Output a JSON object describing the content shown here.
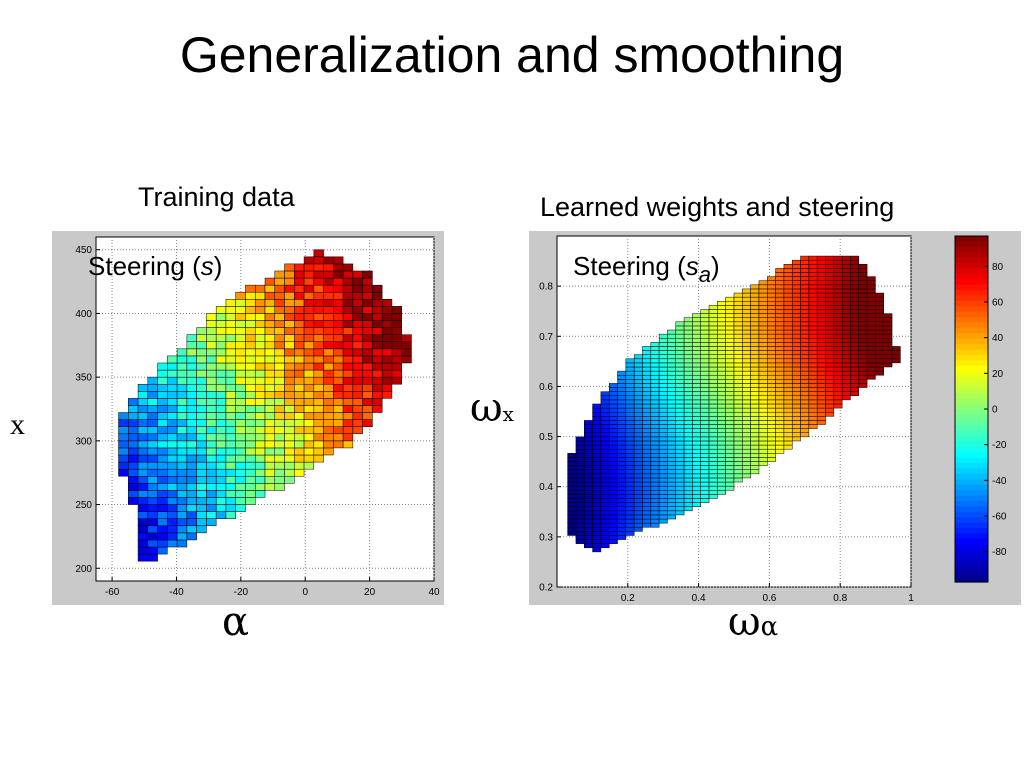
{
  "slide": {
    "title": "Generalization and smoothing"
  },
  "left_panel": {
    "title": "Training data",
    "inner_label": {
      "text": "Steering (",
      "symbol": "s",
      "close": ")"
    },
    "xlabel": "α",
    "ylabel": "x"
  },
  "right_panel": {
    "title": "Learned weights and steering",
    "inner_label": {
      "text": "Steering (",
      "symbol": "s",
      "subscript": "a",
      "close": ")"
    },
    "xlabel": {
      "main": "ω",
      "sub": "α"
    },
    "ylabel": {
      "main": "ω",
      "sub": "x"
    }
  },
  "chart_data": [
    {
      "type": "heatmap",
      "title": "Training data",
      "xlabel": "α",
      "ylabel": "x",
      "xlim": [
        -65,
        40
      ],
      "ylim": [
        190,
        460
      ],
      "xticks": [
        -60,
        -40,
        -20,
        0,
        20,
        40
      ],
      "yticks": [
        200,
        250,
        300,
        350,
        400,
        450
      ],
      "grid": true,
      "series_label": "Steering (s)",
      "region_boundary": [
        [
          -50,
          200
        ],
        [
          -45,
          210
        ],
        [
          -20,
          245
        ],
        [
          0,
          275
        ],
        [
          15,
          300
        ],
        [
          28,
          340
        ],
        [
          33,
          370
        ],
        [
          30,
          400
        ],
        [
          20,
          430
        ],
        [
          5,
          450
        ],
        [
          -25,
          410
        ],
        [
          -40,
          370
        ],
        [
          -50,
          345
        ],
        [
          -58,
          320
        ],
        [
          -58,
          280
        ],
        [
          -52,
          240
        ],
        [
          -50,
          200
        ]
      ],
      "color_trend": "low (blue) at negative α, high (red) at large α and x",
      "value_range": [
        -90,
        90
      ]
    },
    {
      "type": "heatmap",
      "title": "Learned weights and steering",
      "xlabel": "ωα",
      "ylabel": "ωx",
      "xlim": [
        0,
        1
      ],
      "ylim": [
        0.2,
        0.9
      ],
      "xticks": [
        0.2,
        0.4,
        0.6,
        0.8,
        1
      ],
      "yticks": [
        0.2,
        0.3,
        0.4,
        0.5,
        0.6,
        0.7,
        0.8
      ],
      "grid": true,
      "series_label": "Steering (s_a)",
      "region_boundary": [
        [
          0.1,
          0.27
        ],
        [
          0.3,
          0.33
        ],
        [
          0.5,
          0.4
        ],
        [
          0.7,
          0.5
        ],
        [
          0.9,
          0.62
        ],
        [
          0.97,
          0.65
        ],
        [
          0.92,
          0.78
        ],
        [
          0.85,
          0.86
        ],
        [
          0.7,
          0.86
        ],
        [
          0.55,
          0.8
        ],
        [
          0.35,
          0.73
        ],
        [
          0.2,
          0.65
        ],
        [
          0.1,
          0.55
        ],
        [
          0.03,
          0.45
        ],
        [
          0.03,
          0.31
        ],
        [
          0.1,
          0.27
        ]
      ],
      "color_trend": "low (blue) at small ωα, high (red) at large ωα",
      "value_range": [
        -90,
        90
      ],
      "colorbar": {
        "ticks": [
          80,
          60,
          40,
          20,
          0,
          -20,
          -40,
          -60,
          -80
        ],
        "range": [
          -97,
          97
        ],
        "colormap": "jet"
      }
    }
  ]
}
